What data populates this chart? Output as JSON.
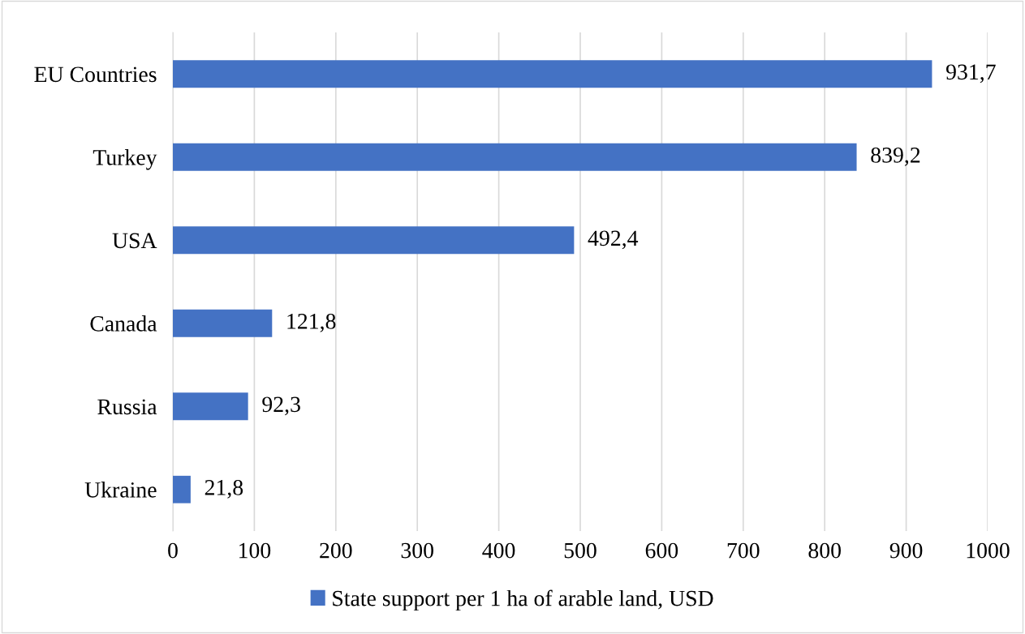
{
  "chart_data": {
    "type": "bar",
    "orientation": "horizontal",
    "categories": [
      "EU Countries",
      "Turkey",
      "USA",
      "Canada",
      "Russia",
      "Ukraine"
    ],
    "series": [
      {
        "name": "State support per 1 ha of arable land, USD",
        "color": "#4472c4",
        "values": [
          931.7,
          839.2,
          492.4,
          121.8,
          92.3,
          21.8
        ],
        "value_labels": [
          "931,7",
          "839,2",
          "492,4",
          "121,8",
          "92,3",
          "21,8"
        ]
      }
    ],
    "xlim": [
      0,
      1000
    ],
    "xticks": [
      0,
      100,
      200,
      300,
      400,
      500,
      600,
      700,
      800,
      900,
      1000
    ],
    "grid": "x",
    "legend": "bottom"
  }
}
